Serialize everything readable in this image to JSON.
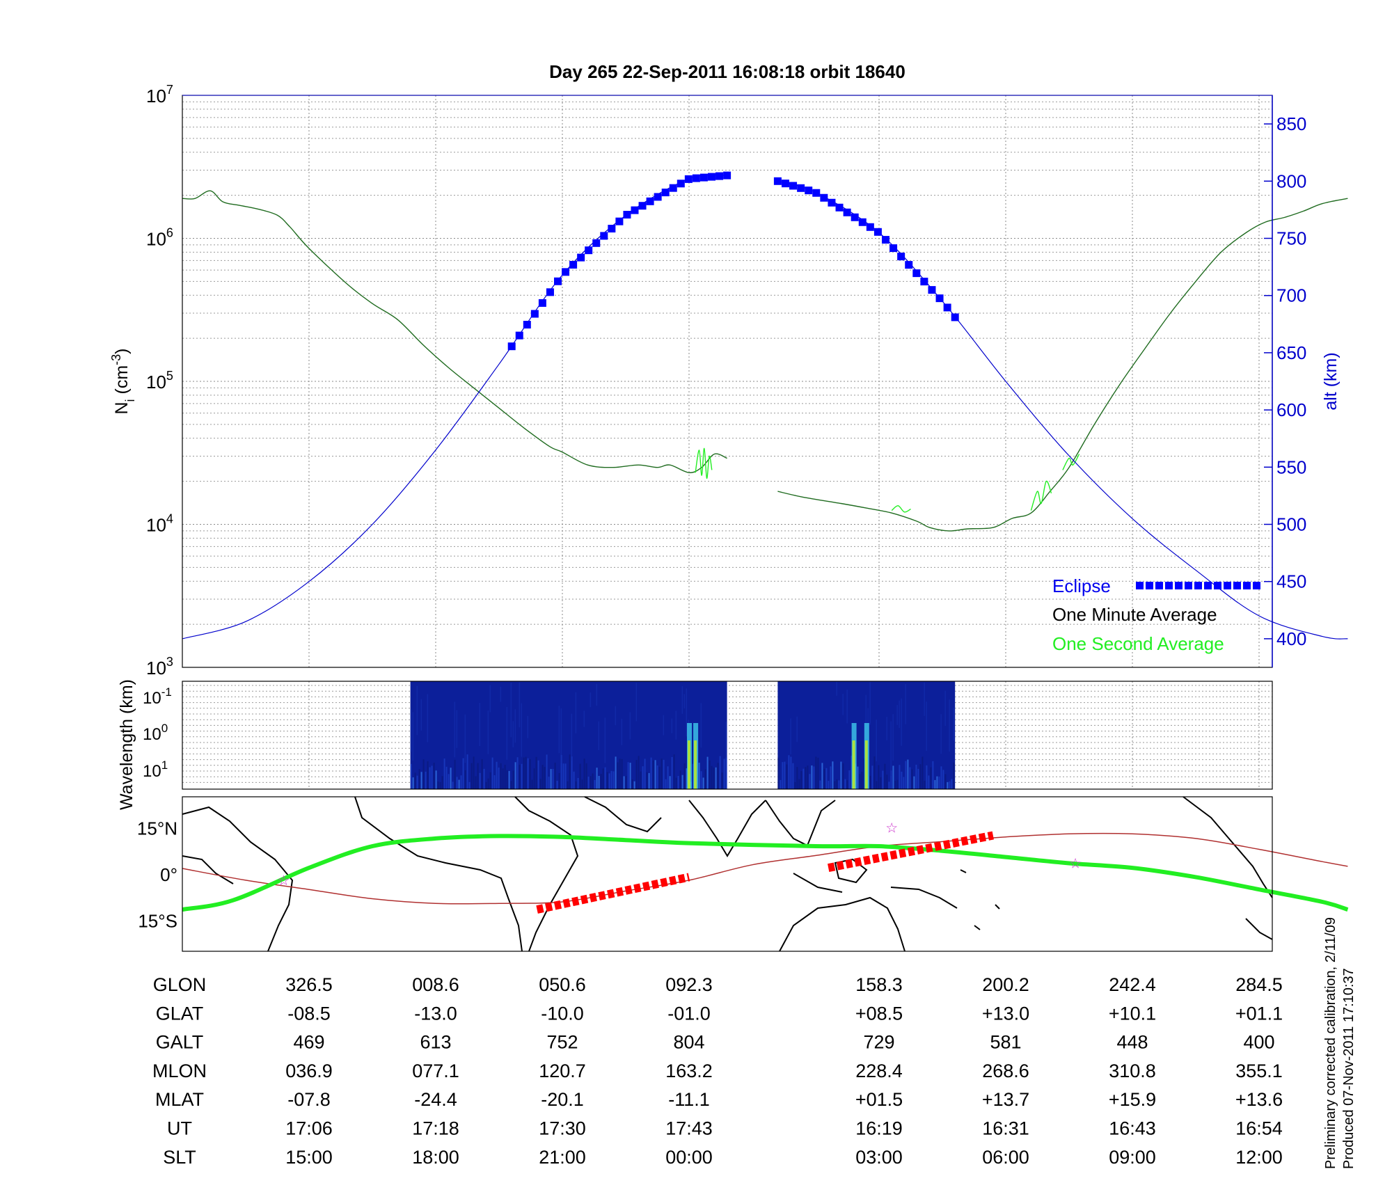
{
  "title": "Day 265  22-Sep-2011 16:08:18   orbit 18640",
  "colors": {
    "density_minute": "#1f6b1f",
    "density_second": "#22ee22",
    "altitude": "#0000cc",
    "eclipse": "#0000ff",
    "eclipse_track": "#ff0000",
    "orbit_track": "#22ee22",
    "mag_equator": "#b03030",
    "star": "#cc33cc",
    "spectrogram_bg": "#0c1f9a"
  },
  "chart_data": [
    {
      "type": "line",
      "panel": "density-altitude",
      "title": "Day 265  22-Sep-2011 16:08:18   orbit 18640",
      "ylabel": "N_i (cm^-3)",
      "y2label": "alt (km)",
      "log_y": true,
      "ylim": [
        1000,
        10000000
      ],
      "y_ticks": [
        {
          "value": 1000,
          "base": "10",
          "exp": "3"
        },
        {
          "value": 10000,
          "base": "10",
          "exp": "4"
        },
        {
          "value": 100000,
          "base": "10",
          "exp": "5"
        },
        {
          "value": 1000000,
          "base": "10",
          "exp": "6"
        },
        {
          "value": 10000000,
          "base": "10",
          "exp": "7"
        }
      ],
      "y2lim": [
        375,
        875
      ],
      "y2_ticks": [
        400,
        450,
        500,
        550,
        600,
        650,
        700,
        750,
        800,
        850
      ],
      "grid": true,
      "legend_position": "bottom-right",
      "legend": [
        "Eclipse",
        "One Minute Average",
        "One Second Average"
      ],
      "series": [
        {
          "name": "One Minute Average",
          "axis": "left",
          "segments": [
            [
              [
                0,
                1900000
              ],
              [
                0.1,
                1900000
              ],
              [
                0.22,
                2150000
              ],
              [
                0.32,
                1800000
              ],
              [
                0.45,
                1700000
              ],
              [
                0.6,
                1600000
              ],
              [
                0.75,
                1450000
              ],
              [
                0.85,
                1200000
              ],
              [
                1.0,
                850000
              ],
              [
                1.3,
                480000
              ],
              [
                1.5,
                350000
              ],
              [
                1.7,
                270000
              ],
              [
                1.9,
                180000
              ],
              [
                2.1,
                125000
              ],
              [
                2.3,
                90000
              ],
              [
                2.5,
                65000
              ],
              [
                2.7,
                47000
              ],
              [
                2.9,
                35000
              ],
              [
                3.0,
                32000
              ],
              [
                3.2,
                26000
              ],
              [
                3.4,
                25000
              ],
              [
                3.6,
                26000
              ],
              [
                3.75,
                25000
              ],
              [
                3.85,
                26000
              ],
              [
                4.0,
                23000
              ],
              [
                4.1,
                25000
              ],
              [
                4.2,
                31000
              ],
              [
                4.3,
                29000
              ]
            ],
            [
              [
                4.7,
                17000
              ],
              [
                4.9,
                15500
              ],
              [
                5.2,
                14000
              ],
              [
                5.4,
                13000
              ],
              [
                5.6,
                12000
              ],
              [
                5.8,
                10500
              ],
              [
                5.9,
                9500
              ],
              [
                6.05,
                9000
              ],
              [
                6.2,
                9300
              ],
              [
                6.4,
                9500
              ],
              [
                6.55,
                11000
              ],
              [
                6.7,
                12000
              ],
              [
                6.85,
                17000
              ],
              [
                7.0,
                25000
              ],
              [
                7.2,
                50000
              ],
              [
                7.4,
                95000
              ],
              [
                7.6,
                170000
              ],
              [
                7.8,
                300000
              ],
              [
                8.0,
                500000
              ],
              [
                8.2,
                800000
              ],
              [
                8.4,
                1100000
              ],
              [
                8.55,
                1300000
              ],
              [
                8.7,
                1400000
              ],
              [
                8.85,
                1550000
              ],
              [
                9.0,
                1750000
              ],
              [
                9.2,
                1900000
              ]
            ]
          ]
        },
        {
          "name": "One Second Average",
          "axis": "left",
          "segments": [
            [
              [
                4.05,
                23000
              ],
              [
                4.08,
                33000
              ],
              [
                4.1,
                22000
              ],
              [
                4.12,
                34000
              ],
              [
                4.14,
                21000
              ],
              [
                4.16,
                30000
              ],
              [
                4.18,
                24000
              ]
            ],
            [
              [
                5.6,
                12500
              ],
              [
                5.65,
                13500
              ],
              [
                5.7,
                12200
              ],
              [
                5.75,
                12800
              ]
            ],
            [
              [
                6.7,
                12500
              ],
              [
                6.75,
                17000
              ],
              [
                6.78,
                14000
              ],
              [
                6.82,
                20000
              ],
              [
                6.86,
                16500
              ]
            ],
            [
              [
                6.95,
                24000
              ],
              [
                7.0,
                29000
              ],
              [
                7.03,
                26000
              ],
              [
                7.08,
                31000
              ]
            ]
          ]
        },
        {
          "name": "alt (km)",
          "axis": "right",
          "segments": [
            [
              [
                0,
                400
              ],
              [
                0.5,
                415
              ],
              [
                1.0,
                450
              ],
              [
                1.5,
                500
              ],
              [
                2.0,
                565
              ],
              [
                2.5,
                640
              ],
              [
                3.0,
                718
              ],
              [
                3.5,
                770
              ],
              [
                4.0,
                802
              ],
              [
                4.3,
                805
              ]
            ],
            [
              [
                4.7,
                800
              ],
              [
                5.0,
                790
              ],
              [
                5.5,
                755
              ],
              [
                6.0,
                695
              ],
              [
                6.5,
                625
              ],
              [
                7.0,
                560
              ],
              [
                7.5,
                505
              ],
              [
                8.0,
                460
              ],
              [
                8.5,
                420
              ],
              [
                9.0,
                402
              ],
              [
                9.2,
                400
              ]
            ]
          ]
        },
        {
          "name": "Eclipse",
          "axis": "right",
          "marker": "square",
          "segments": [
            [
              [
                2.6,
                703
              ],
              [
                4.3,
                805
              ]
            ],
            [
              [
                4.7,
                801
              ],
              [
                6.1,
                666
              ]
            ],
            [
              [
                8.27,
                447
              ],
              [
                9.0,
                447
              ]
            ]
          ]
        }
      ]
    },
    {
      "type": "heatmap",
      "panel": "spectrogram",
      "ylabel": "Wavelength (km)",
      "y_ticks": [
        {
          "base": "10",
          "exp": "-1"
        },
        {
          "base": "10",
          "exp": "0"
        },
        {
          "base": "10",
          "exp": "1"
        }
      ],
      "blocks": [
        {
          "x_start": 1.8,
          "x_end": 4.3,
          "hotspots": [
            4.0,
            4.05
          ]
        },
        {
          "x_start": 4.7,
          "x_end": 6.1,
          "hotspots": [
            5.3,
            5.4
          ]
        }
      ]
    },
    {
      "type": "line",
      "panel": "map",
      "y_ticks": [
        "15°N",
        "0°",
        "15°S"
      ],
      "ylim": [
        -25,
        25
      ],
      "series": [
        {
          "name": "orbit track",
          "points": [
            [
              0,
              -11.5
            ],
            [
              0.4,
              -8.5
            ],
            [
              1.0,
              2.0
            ],
            [
              1.5,
              9.0
            ],
            [
              2.0,
              11.5
            ],
            [
              2.5,
              12.3
            ],
            [
              3.0,
              12.0
            ],
            [
              3.5,
              11.0
            ],
            [
              4.0,
              10.0
            ],
            [
              5.0,
              9.0
            ],
            [
              5.5,
              9.0
            ],
            [
              6.0,
              7.5
            ],
            [
              6.5,
              5.5
            ],
            [
              7.0,
              3.5
            ],
            [
              7.5,
              2.0
            ],
            [
              8.0,
              -1.0
            ],
            [
              8.5,
              -5.0
            ],
            [
              9.0,
              -9.0
            ],
            [
              9.2,
              -11.5
            ]
          ]
        },
        {
          "name": "magnetic equator",
          "points": [
            [
              0,
              1.8
            ],
            [
              0.5,
              -2.0
            ],
            [
              1.0,
              -5.0
            ],
            [
              1.5,
              -8.0
            ],
            [
              2.0,
              -9.5
            ],
            [
              2.5,
              -9.5
            ],
            [
              3.0,
              -9.0
            ],
            [
              3.5,
              -5.5
            ],
            [
              4.0,
              -2.0
            ],
            [
              4.5,
              3.0
            ],
            [
              5.0,
              6.0
            ],
            [
              5.5,
              9.0
            ],
            [
              6.0,
              10.5
            ],
            [
              6.5,
              12.0
            ],
            [
              7.0,
              13.0
            ],
            [
              7.5,
              13.0
            ],
            [
              8.0,
              11.5
            ],
            [
              8.5,
              8.0
            ],
            [
              9.0,
              4.0
            ],
            [
              9.2,
              2.5
            ]
          ]
        },
        {
          "name": "eclipse track",
          "points": [
            [
              2.8,
              -11.5
            ],
            [
              4.0,
              -1.0
            ]
          ],
          "points2": [
            [
              5.1,
              2.0
            ],
            [
              6.4,
              12.5
            ]
          ]
        }
      ],
      "stars": [
        [
          0.8,
          -2.0
        ],
        [
          5.6,
          15.0
        ],
        [
          7.05,
          3.5
        ]
      ]
    }
  ],
  "table": {
    "row_labels": [
      "GLON",
      "GLAT",
      "GALT",
      "MLON",
      "MLAT",
      "UT",
      "SLT"
    ],
    "x_positions": [
      1,
      2,
      3,
      4,
      5.5,
      6.5,
      7.5,
      8.5
    ],
    "columns": [
      [
        "326.5",
        "-08.5",
        "469",
        "036.9",
        "-07.8",
        "17:06",
        "15:00"
      ],
      [
        "008.6",
        "-13.0",
        "613",
        "077.1",
        "-24.4",
        "17:18",
        "18:00"
      ],
      [
        "050.6",
        "-10.0",
        "752",
        "120.7",
        "-20.1",
        "17:30",
        "21:00"
      ],
      [
        "092.3",
        "-01.0",
        "804",
        "163.2",
        "-11.1",
        "17:43",
        "00:00"
      ],
      [
        "158.3",
        "+08.5",
        "729",
        "228.4",
        "+01.5",
        "16:19",
        "03:00"
      ],
      [
        "200.2",
        "+13.0",
        "581",
        "268.6",
        "+13.7",
        "16:31",
        "06:00"
      ],
      [
        "242.4",
        "+10.1",
        "448",
        "310.8",
        "+15.9",
        "16:43",
        "09:00"
      ],
      [
        "284.5",
        "+01.1",
        "400",
        "355.1",
        "+13.6",
        "16:54",
        "12:00"
      ]
    ]
  },
  "footer": {
    "line1": "Preliminary corrected calibration, 2/11/09",
    "line2": "Produced 07-Nov-2011 17:10:37"
  }
}
